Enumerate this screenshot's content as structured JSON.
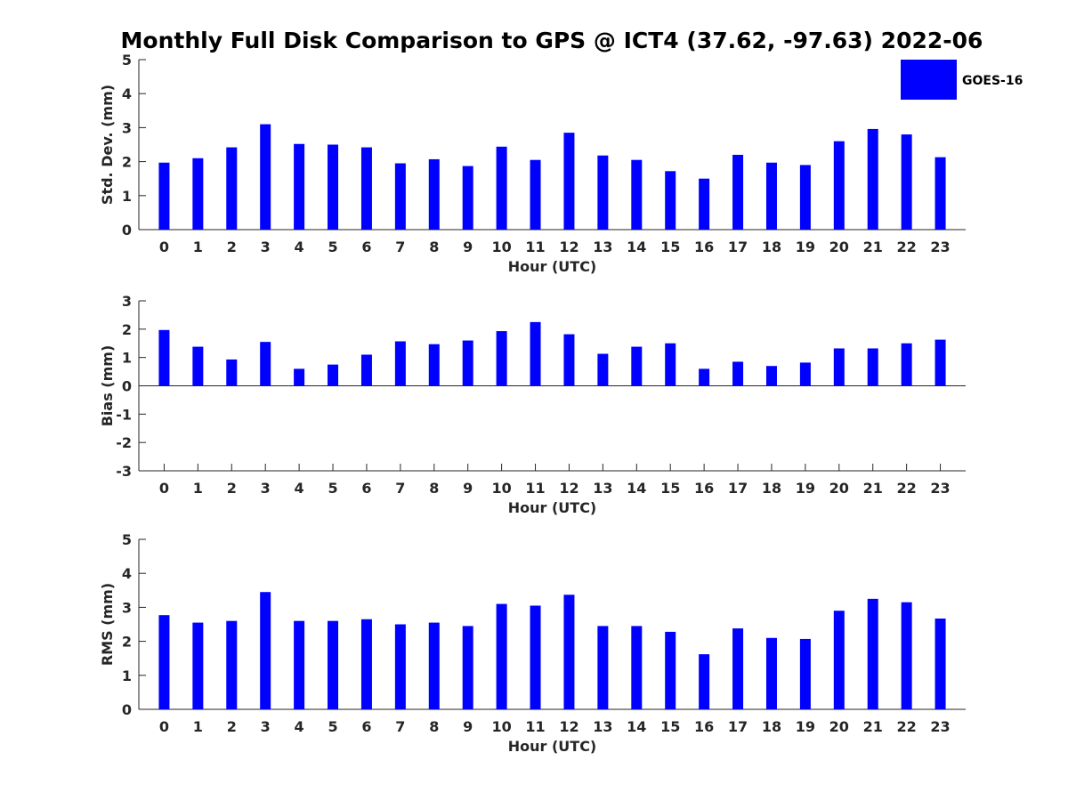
{
  "title": "Monthly Full Disk Comparison to GPS @ ICT4 (37.62, -97.63) 2022-06",
  "legend": {
    "label": "GOES-16",
    "color": "#0000ff",
    "placement": "top-right"
  },
  "chart_data": [
    {
      "type": "bar",
      "id": "stddev",
      "title": "Monthly Full Disk Comparison to GPS @ ICT4 (37.62, -97.63) 2022-06",
      "xlabel": "Hour (UTC)",
      "ylabel": "Std. Dev. (mm)",
      "categories": [
        "0",
        "1",
        "2",
        "3",
        "4",
        "5",
        "6",
        "7",
        "8",
        "9",
        "10",
        "11",
        "12",
        "13",
        "14",
        "15",
        "16",
        "17",
        "18",
        "19",
        "20",
        "21",
        "22",
        "23"
      ],
      "yticks": [
        "0",
        "1",
        "2",
        "3",
        "4",
        "5"
      ],
      "ylim": [
        0,
        5
      ],
      "series": [
        {
          "name": "GOES-16",
          "color": "#0000ff",
          "values": [
            1.97,
            2.1,
            2.42,
            3.1,
            2.52,
            2.5,
            2.42,
            1.95,
            2.07,
            1.87,
            2.44,
            2.05,
            2.85,
            2.18,
            2.05,
            1.72,
            1.5,
            2.2,
            1.97,
            1.9,
            2.6,
            2.96,
            2.8,
            2.13
          ]
        }
      ]
    },
    {
      "type": "bar",
      "id": "bias",
      "xlabel": "Hour (UTC)",
      "ylabel": "Bias (mm)",
      "categories": [
        "0",
        "1",
        "2",
        "3",
        "4",
        "5",
        "6",
        "7",
        "8",
        "9",
        "10",
        "11",
        "12",
        "13",
        "14",
        "15",
        "16",
        "17",
        "18",
        "19",
        "20",
        "21",
        "22",
        "23"
      ],
      "yticks": [
        "-3",
        "-2",
        "-1",
        "0",
        "1",
        "2",
        "3"
      ],
      "ylim": [
        -3,
        3
      ],
      "series": [
        {
          "name": "GOES-16",
          "color": "#0000ff",
          "values": [
            1.97,
            1.38,
            0.93,
            1.55,
            0.6,
            0.75,
            1.1,
            1.57,
            1.47,
            1.6,
            1.93,
            2.25,
            1.82,
            1.13,
            1.38,
            1.5,
            0.6,
            0.85,
            0.7,
            0.82,
            1.32,
            1.32,
            1.5,
            1.63
          ]
        }
      ]
    },
    {
      "type": "bar",
      "id": "rms",
      "xlabel": "Hour (UTC)",
      "ylabel": "RMS (mm)",
      "categories": [
        "0",
        "1",
        "2",
        "3",
        "4",
        "5",
        "6",
        "7",
        "8",
        "9",
        "10",
        "11",
        "12",
        "13",
        "14",
        "15",
        "16",
        "17",
        "18",
        "19",
        "20",
        "21",
        "22",
        "23"
      ],
      "yticks": [
        "0",
        "1",
        "2",
        "3",
        "4",
        "5"
      ],
      "ylim": [
        0,
        5
      ],
      "series": [
        {
          "name": "GOES-16",
          "color": "#0000ff",
          "values": [
            2.77,
            2.55,
            2.6,
            3.45,
            2.6,
            2.6,
            2.65,
            2.5,
            2.55,
            2.45,
            3.1,
            3.05,
            3.37,
            2.45,
            2.45,
            2.28,
            1.62,
            2.38,
            2.1,
            2.07,
            2.9,
            3.25,
            3.15,
            2.67
          ]
        }
      ]
    }
  ]
}
